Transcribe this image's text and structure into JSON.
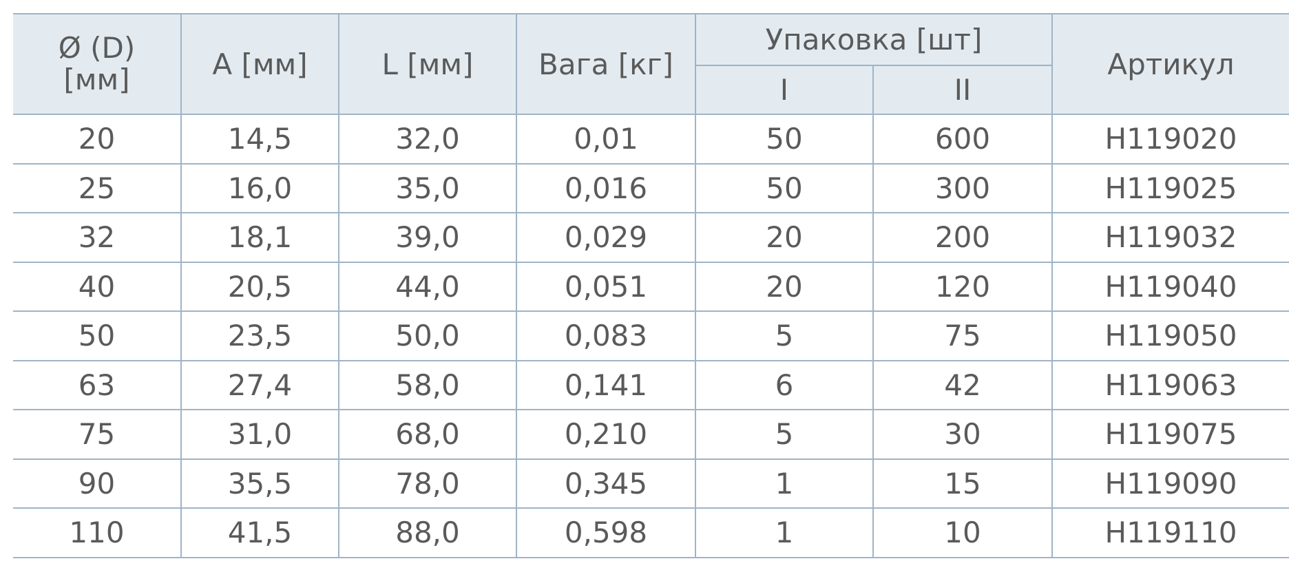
{
  "table": {
    "header": {
      "diameter": [
        "Ø (D)",
        "[мм]"
      ],
      "a": "A [мм]",
      "l": "L [мм]",
      "weight": "Вага [кг]",
      "packaging": "Упаковка [шт]",
      "pack_i": "I",
      "pack_ii": "II",
      "article": "Артикул"
    },
    "rows": [
      [
        "20",
        "14,5",
        "32,0",
        "0,01",
        "50",
        "600",
        "H119020"
      ],
      [
        "25",
        "16,0",
        "35,0",
        "0,016",
        "50",
        "300",
        "H119025"
      ],
      [
        "32",
        "18,1",
        "39,0",
        "0,029",
        "20",
        "200",
        "H119032"
      ],
      [
        "40",
        "20,5",
        "44,0",
        "0,051",
        "20",
        "120",
        "H119040"
      ],
      [
        "50",
        "23,5",
        "50,0",
        "0,083",
        "5",
        "75",
        "H119050"
      ],
      [
        "63",
        "27,4",
        "58,0",
        "0,141",
        "6",
        "42",
        "H119063"
      ],
      [
        "75",
        "31,0",
        "68,0",
        "0,210",
        "5",
        "30",
        "H119075"
      ],
      [
        "90",
        "35,5",
        "78,0",
        "0,345",
        "1",
        "15",
        "H119090"
      ],
      [
        "110",
        "41,5",
        "88,0",
        "0,598",
        "1",
        "10",
        "H119110"
      ]
    ]
  }
}
